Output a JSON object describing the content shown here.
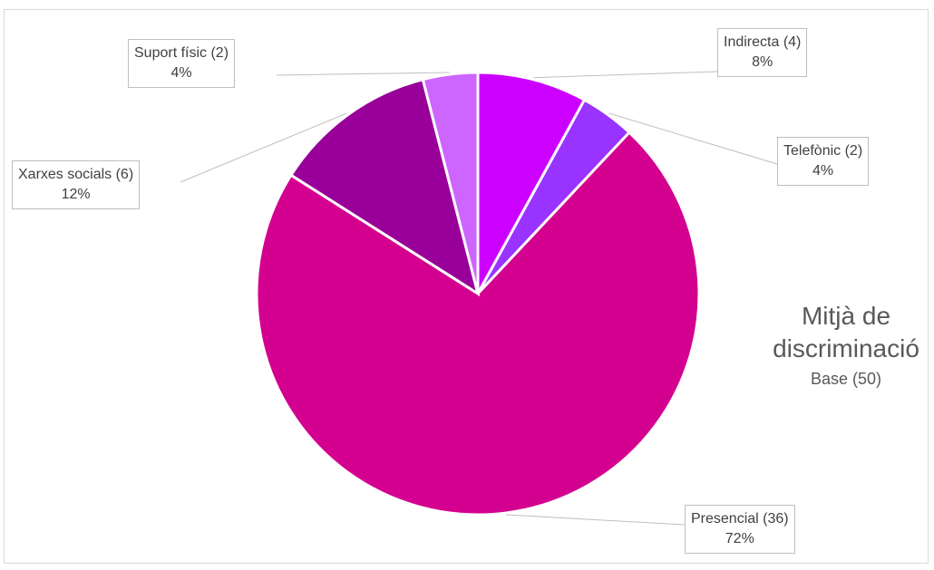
{
  "chart_data": {
    "type": "pie",
    "title": "Mitjà de discriminació",
    "subtitle": "Base (50)",
    "title_lines": [
      "Mitjà de",
      "discriminació"
    ],
    "slices": [
      {
        "name": "Indirecta",
        "count": 4,
        "percent": "8%",
        "label": "Indirecta (4)",
        "color": "#cc00ff"
      },
      {
        "name": "Telefònic",
        "count": 2,
        "percent": "4%",
        "label": "Telefònic (2)",
        "color": "#9933ff"
      },
      {
        "name": "Presencial",
        "count": 36,
        "percent": "72%",
        "label": "Presencial (36)",
        "color": "#d4008f"
      },
      {
        "name": "Xarxes socials",
        "count": 6,
        "percent": "12%",
        "label": "Xarxes socials (6)",
        "color": "#990099"
      },
      {
        "name": "Suport físic",
        "count": 2,
        "percent": "4%",
        "label": "Suport físic (2)",
        "color": "#cc66ff"
      }
    ],
    "total": 50,
    "start_angle_deg": 0,
    "direction": "clockwise",
    "legend": "none"
  }
}
